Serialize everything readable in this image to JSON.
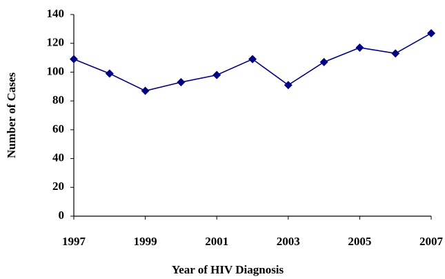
{
  "chart_data": {
    "type": "line",
    "x_label": "Year of HIV Diagnosis",
    "y_label": "Number of Cases",
    "x": [
      1997,
      1998,
      1999,
      2000,
      2001,
      2002,
      2003,
      2004,
      2005,
      2006,
      2007
    ],
    "values": [
      109,
      99,
      87,
      93,
      98,
      109,
      91,
      107,
      117,
      113,
      127
    ],
    "color": "#000080",
    "xlim": [
      1997,
      2007
    ],
    "xticks": [
      1997,
      1999,
      2001,
      2003,
      2005,
      2007
    ],
    "ylim": [
      0,
      140
    ],
    "yticks": [
      0,
      20,
      40,
      60,
      80,
      100,
      120,
      140
    ],
    "grid": false
  }
}
